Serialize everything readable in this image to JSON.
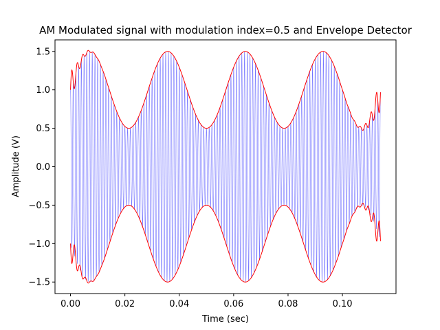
{
  "chart_data": {
    "type": "line",
    "title": "AM Modulated signal with modulation index=0.5 and Envelope Detector",
    "xlabel": "Time (sec)",
    "ylabel": "Amplitude (V)",
    "xlim": [
      -0.0057,
      0.1197
    ],
    "ylim": [
      -1.65,
      1.65
    ],
    "x_ticks": [
      0.0,
      0.02,
      0.04,
      0.06,
      0.08,
      0.1
    ],
    "x_tick_labels": [
      "0.00",
      "0.02",
      "0.04",
      "0.06",
      "0.08",
      "0.10"
    ],
    "y_ticks": [
      -1.5,
      -1.0,
      -0.5,
      0.0,
      0.5,
      1.0,
      1.5
    ],
    "y_tick_labels": [
      "−1.5",
      "−1.0",
      "−0.5",
      "0.0",
      "0.5",
      "1.0",
      "1.5"
    ],
    "grid": false,
    "series": [
      {
        "color": "#0000ff",
        "role": "modulated signal",
        "carrier_freq_hz": 1000,
        "message_freq_hz": 35,
        "modulation_index": 0.5,
        "carrier_amplitude": 1.0,
        "t_range": [
          0.0,
          0.114
        ]
      },
      {
        "color": "#ff0000",
        "role": "upper envelope",
        "values": "1 + 0.5*sin(2*pi*35*t)",
        "t_range": [
          0.0,
          0.114
        ]
      },
      {
        "color": "#ff0000",
        "role": "lower envelope",
        "values": "-(1 + 0.5*sin(2*pi*35*t))",
        "t_range": [
          0.0,
          0.114
        ]
      }
    ]
  }
}
